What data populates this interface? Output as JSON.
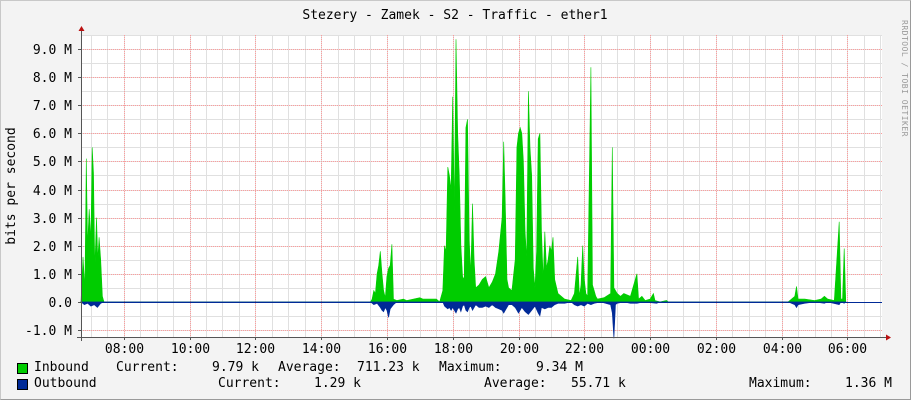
{
  "chart_data": {
    "type": "area",
    "title": "Stezery - Zamek - S2 - Traffic - ether1",
    "ylabel": "bits per second",
    "watermark": "RRDTOOL / TOBI OETIKER",
    "ylim": [
      -1.25,
      9.5
    ],
    "y_ticks": [
      {
        "v": -1,
        "label": "-1.0 M"
      },
      {
        "v": 0,
        "label": "0.0"
      },
      {
        "v": 1,
        "label": "1.0 M"
      },
      {
        "v": 2,
        "label": "2.0 M"
      },
      {
        "v": 3,
        "label": "3.0 M"
      },
      {
        "v": 4,
        "label": "4.0 M"
      },
      {
        "v": 5,
        "label": "5.0 M"
      },
      {
        "v": 6,
        "label": "6.0 M"
      },
      {
        "v": 7,
        "label": "7.0 M"
      },
      {
        "v": 8,
        "label": "8.0 M"
      },
      {
        "v": 9,
        "label": "9.0 M"
      }
    ],
    "x_range_hours": [
      6.7,
      31.05
    ],
    "x_ticks": [
      {
        "h": 8,
        "label": "08:00"
      },
      {
        "h": 10,
        "label": "10:00"
      },
      {
        "h": 12,
        "label": "12:00"
      },
      {
        "h": 14,
        "label": "14:00"
      },
      {
        "h": 16,
        "label": "16:00"
      },
      {
        "h": 18,
        "label": "18:00"
      },
      {
        "h": 20,
        "label": "20:00"
      },
      {
        "h": 22,
        "label": "22:00"
      },
      {
        "h": 24,
        "label": "00:00"
      },
      {
        "h": 26,
        "label": "02:00"
      },
      {
        "h": 28,
        "label": "04:00"
      },
      {
        "h": 30,
        "label": "06:00"
      }
    ],
    "series": [
      {
        "name": "Inbound",
        "color": "#00cc00",
        "points": [
          [
            6.7,
            0
          ],
          [
            6.76,
            1.6
          ],
          [
            6.82,
            0.5
          ],
          [
            6.86,
            5.1
          ],
          [
            6.9,
            2.0
          ],
          [
            6.95,
            3.3
          ],
          [
            7.0,
            2.2
          ],
          [
            7.04,
            5.5
          ],
          [
            7.08,
            4.6
          ],
          [
            7.12,
            1.2
          ],
          [
            7.17,
            3.0
          ],
          [
            7.21,
            1.5
          ],
          [
            7.25,
            2.3
          ],
          [
            7.3,
            1.5
          ],
          [
            7.35,
            0.2
          ],
          [
            7.4,
            0
          ],
          [
            15.5,
            0
          ],
          [
            15.55,
            0.1
          ],
          [
            15.6,
            0.4
          ],
          [
            15.65,
            0.3
          ],
          [
            15.7,
            1.0
          ],
          [
            15.75,
            1.3
          ],
          [
            15.8,
            1.8
          ],
          [
            15.85,
            1.0
          ],
          [
            15.9,
            0.4
          ],
          [
            15.95,
            0.15
          ],
          [
            16.0,
            0.9
          ],
          [
            16.05,
            1.2
          ],
          [
            16.1,
            1.3
          ],
          [
            16.15,
            2.05
          ],
          [
            16.2,
            0.1
          ],
          [
            16.3,
            0.05
          ],
          [
            16.5,
            0.1
          ],
          [
            16.6,
            0.05
          ],
          [
            17.0,
            0.15
          ],
          [
            17.1,
            0.1
          ],
          [
            17.4,
            0.1
          ],
          [
            17.5,
            0.1
          ],
          [
            17.6,
            0
          ],
          [
            17.7,
            0.4
          ],
          [
            17.75,
            2.0
          ],
          [
            17.8,
            1.8
          ],
          [
            17.85,
            4.8
          ],
          [
            17.9,
            4.5
          ],
          [
            17.95,
            4.0
          ],
          [
            18.0,
            7.3
          ],
          [
            18.05,
            3.2
          ],
          [
            18.1,
            9.35
          ],
          [
            18.15,
            6.0
          ],
          [
            18.2,
            4.5
          ],
          [
            18.25,
            2.0
          ],
          [
            18.3,
            0.9
          ],
          [
            18.35,
            0.8
          ],
          [
            18.4,
            6.2
          ],
          [
            18.45,
            6.5
          ],
          [
            18.5,
            2.2
          ],
          [
            18.55,
            1.0
          ],
          [
            18.6,
            3.5
          ],
          [
            18.65,
            1.5
          ],
          [
            18.7,
            0.5
          ],
          [
            18.8,
            0.6
          ],
          [
            18.9,
            0.8
          ],
          [
            19.0,
            0.9
          ],
          [
            19.1,
            0.5
          ],
          [
            19.2,
            0.7
          ],
          [
            19.3,
            1.0
          ],
          [
            19.4,
            1.8
          ],
          [
            19.5,
            3.0
          ],
          [
            19.55,
            5.7
          ],
          [
            19.6,
            3.5
          ],
          [
            19.65,
            0.8
          ],
          [
            19.7,
            0.5
          ],
          [
            19.8,
            0.4
          ],
          [
            19.9,
            1.5
          ],
          [
            19.95,
            5.5
          ],
          [
            20.0,
            6.0
          ],
          [
            20.05,
            6.2
          ],
          [
            20.1,
            6.0
          ],
          [
            20.15,
            5.0
          ],
          [
            20.2,
            2.5
          ],
          [
            20.25,
            1.5
          ],
          [
            20.3,
            7.5
          ],
          [
            20.35,
            5.5
          ],
          [
            20.4,
            4.5
          ],
          [
            20.45,
            1.2
          ],
          [
            20.5,
            0.5
          ],
          [
            20.55,
            1.8
          ],
          [
            20.6,
            5.8
          ],
          [
            20.65,
            6.0
          ],
          [
            20.7,
            2.5
          ],
          [
            20.75,
            0.8
          ],
          [
            20.8,
            2.5
          ],
          [
            20.85,
            1.2
          ],
          [
            20.9,
            1.5
          ],
          [
            20.95,
            2.0
          ],
          [
            21.0,
            1.8
          ],
          [
            21.05,
            2.3
          ],
          [
            21.1,
            0.8
          ],
          [
            21.2,
            0.3
          ],
          [
            21.4,
            0.1
          ],
          [
            21.6,
            0.05
          ],
          [
            21.7,
            0.3
          ],
          [
            21.8,
            1.6
          ],
          [
            21.85,
            0.2
          ],
          [
            21.9,
            0.6
          ],
          [
            21.95,
            2.0
          ],
          [
            22.0,
            0.8
          ],
          [
            22.05,
            0.3
          ],
          [
            22.1,
            0.2
          ],
          [
            22.2,
            8.35
          ],
          [
            22.25,
            0.6
          ],
          [
            22.3,
            0.4
          ],
          [
            22.35,
            0.2
          ],
          [
            22.4,
            0.1
          ],
          [
            22.6,
            0.15
          ],
          [
            22.8,
            0.3
          ],
          [
            22.85,
            5.5
          ],
          [
            22.9,
            0.5
          ],
          [
            23.0,
            0.3
          ],
          [
            23.1,
            0.2
          ],
          [
            23.2,
            0.3
          ],
          [
            23.4,
            0.2
          ],
          [
            23.6,
            1.0
          ],
          [
            23.65,
            0.1
          ],
          [
            23.75,
            0.2
          ],
          [
            23.85,
            0.05
          ],
          [
            24.0,
            0.1
          ],
          [
            24.1,
            0.3
          ],
          [
            24.15,
            0.05
          ],
          [
            24.3,
            0
          ],
          [
            24.5,
            0.05
          ],
          [
            24.55,
            0
          ],
          [
            28.2,
            0
          ],
          [
            28.3,
            0.1
          ],
          [
            28.4,
            0.2
          ],
          [
            28.45,
            0.55
          ],
          [
            28.5,
            0.1
          ],
          [
            28.7,
            0.1
          ],
          [
            29.0,
            0.05
          ],
          [
            29.2,
            0.1
          ],
          [
            29.3,
            0.2
          ],
          [
            29.4,
            0.1
          ],
          [
            29.6,
            0.05
          ],
          [
            29.75,
            2.85
          ],
          [
            29.8,
            0.1
          ],
          [
            29.85,
            0.1
          ],
          [
            29.9,
            1.9
          ],
          [
            29.95,
            0
          ]
        ]
      },
      {
        "name": "Outbound",
        "color": "#002a97",
        "points": [
          [
            6.7,
            0
          ],
          [
            6.8,
            -0.1
          ],
          [
            6.9,
            -0.05
          ],
          [
            7.0,
            -0.15
          ],
          [
            7.1,
            -0.1
          ],
          [
            7.2,
            -0.2
          ],
          [
            7.3,
            -0.05
          ],
          [
            7.4,
            0
          ],
          [
            15.5,
            0
          ],
          [
            15.6,
            -0.1
          ],
          [
            15.7,
            -0.05
          ],
          [
            15.8,
            -0.2
          ],
          [
            15.85,
            -0.3
          ],
          [
            15.9,
            -0.35
          ],
          [
            15.95,
            -0.2
          ],
          [
            16.0,
            -0.3
          ],
          [
            16.05,
            -0.55
          ],
          [
            16.1,
            -0.25
          ],
          [
            16.2,
            -0.1
          ],
          [
            16.3,
            0
          ],
          [
            17.7,
            0
          ],
          [
            17.75,
            -0.15
          ],
          [
            17.8,
            -0.2
          ],
          [
            17.85,
            -0.25
          ],
          [
            17.9,
            -0.2
          ],
          [
            17.95,
            -0.3
          ],
          [
            18.0,
            -0.2
          ],
          [
            18.05,
            -0.3
          ],
          [
            18.1,
            -0.4
          ],
          [
            18.15,
            -0.25
          ],
          [
            18.2,
            -0.2
          ],
          [
            18.25,
            -0.35
          ],
          [
            18.3,
            -0.15
          ],
          [
            18.35,
            -0.1
          ],
          [
            18.4,
            -0.3
          ],
          [
            18.45,
            -0.35
          ],
          [
            18.5,
            -0.2
          ],
          [
            18.55,
            -0.15
          ],
          [
            18.6,
            -0.3
          ],
          [
            18.7,
            -0.1
          ],
          [
            18.8,
            -0.2
          ],
          [
            18.9,
            -0.2
          ],
          [
            19.0,
            -0.15
          ],
          [
            19.1,
            -0.2
          ],
          [
            19.2,
            -0.1
          ],
          [
            19.3,
            -0.2
          ],
          [
            19.4,
            -0.25
          ],
          [
            19.5,
            -0.3
          ],
          [
            19.55,
            -0.4
          ],
          [
            19.6,
            -0.3
          ],
          [
            19.7,
            -0.1
          ],
          [
            19.8,
            -0.1
          ],
          [
            19.9,
            -0.2
          ],
          [
            19.95,
            -0.3
          ],
          [
            20.0,
            -0.4
          ],
          [
            20.1,
            -0.2
          ],
          [
            20.2,
            -0.35
          ],
          [
            20.3,
            -0.45
          ],
          [
            20.4,
            -0.3
          ],
          [
            20.5,
            -0.15
          ],
          [
            20.6,
            -0.4
          ],
          [
            20.65,
            -0.5
          ],
          [
            20.7,
            -0.2
          ],
          [
            20.8,
            -0.25
          ],
          [
            20.9,
            -0.2
          ],
          [
            21.0,
            -0.2
          ],
          [
            21.1,
            -0.1
          ],
          [
            21.2,
            -0.05
          ],
          [
            21.4,
            -0.05
          ],
          [
            21.6,
            0
          ],
          [
            21.7,
            -0.1
          ],
          [
            21.8,
            -0.15
          ],
          [
            21.9,
            -0.1
          ],
          [
            22.0,
            -0.15
          ],
          [
            22.1,
            -0.05
          ],
          [
            22.2,
            -0.1
          ],
          [
            22.3,
            -0.05
          ],
          [
            22.5,
            0
          ],
          [
            22.8,
            -0.1
          ],
          [
            22.85,
            -0.4
          ],
          [
            22.9,
            -1.3
          ],
          [
            22.95,
            -0.1
          ],
          [
            23.0,
            -0.05
          ],
          [
            23.2,
            0
          ],
          [
            23.4,
            -0.05
          ],
          [
            23.6,
            -0.05
          ],
          [
            23.8,
            0
          ],
          [
            24.2,
            -0.05
          ],
          [
            24.3,
            0
          ],
          [
            28.2,
            0
          ],
          [
            28.3,
            -0.05
          ],
          [
            28.4,
            -0.1
          ],
          [
            28.45,
            -0.2
          ],
          [
            28.5,
            -0.1
          ],
          [
            28.7,
            -0.05
          ],
          [
            29.0,
            0
          ],
          [
            29.3,
            -0.05
          ],
          [
            29.4,
            0
          ],
          [
            29.75,
            -0.1
          ],
          [
            29.8,
            0
          ],
          [
            29.9,
            -0.05
          ],
          [
            29.95,
            0
          ]
        ]
      }
    ],
    "legend": [
      {
        "name": "Inbound",
        "current": "9.79 k",
        "average": "711.23 k",
        "maximum": "9.34 M"
      },
      {
        "name": "Outbound",
        "current": "1.29 k",
        "average": "55.71 k",
        "maximum": "1.36 M"
      }
    ],
    "legend_labels": {
      "current": "Current:",
      "average": "Average:",
      "maximum": "Maximum:"
    }
  }
}
